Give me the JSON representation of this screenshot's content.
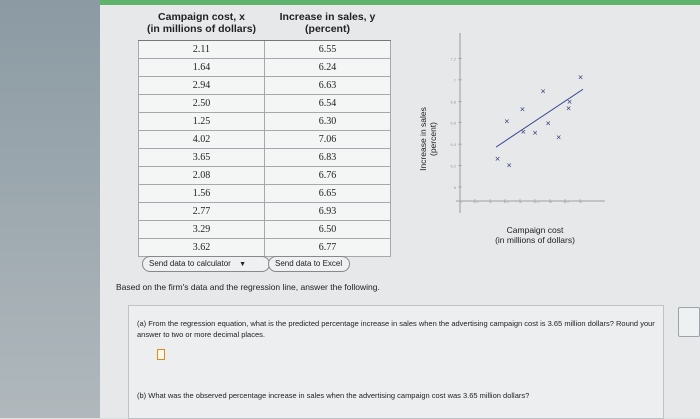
{
  "table": {
    "header_x_line1": "Campaign cost, x",
    "header_x_line2": "(in millions of dollars)",
    "header_y_line1": "Increase in sales, y",
    "header_y_line2": "(percent)",
    "rows": [
      {
        "x": "2.11",
        "y": "6.55"
      },
      {
        "x": "1.64",
        "y": "6.24"
      },
      {
        "x": "2.94",
        "y": "6.63"
      },
      {
        "x": "2.50",
        "y": "6.54"
      },
      {
        "x": "1.25",
        "y": "6.30"
      },
      {
        "x": "4.02",
        "y": "7.06"
      },
      {
        "x": "3.65",
        "y": "6.83"
      },
      {
        "x": "2.08",
        "y": "6.76"
      },
      {
        "x": "1.56",
        "y": "6.65"
      },
      {
        "x": "2.77",
        "y": "6.93"
      },
      {
        "x": "3.29",
        "y": "6.50"
      },
      {
        "x": "3.62",
        "y": "6.77"
      }
    ]
  },
  "buttons": {
    "calculator": "Send data to calculator",
    "excel": "Send data to Excel"
  },
  "prompt": "Based on the firm's data and the regression line, answer the following.",
  "chart_data": {
    "type": "scatter",
    "xlabel_line1": "Campaign cost",
    "xlabel_line2": "(in millions of dollars)",
    "ylabel_line1": "Increase in sales",
    "ylabel_line2": "(percent)",
    "xlim": [
      0,
      4.5
    ],
    "ylim": [
      6.0,
      7.4
    ],
    "y_ticks": [
      "7.2",
      "7",
      "6.8",
      "6.6",
      "6.4",
      "6.2",
      "6"
    ],
    "x_ticks": [
      "0",
      "0.5",
      "1",
      "1.5",
      "2",
      "2.5",
      "3",
      "3.5",
      "4"
    ],
    "points": [
      {
        "x": 2.11,
        "y": 6.55
      },
      {
        "x": 1.64,
        "y": 6.24
      },
      {
        "x": 2.94,
        "y": 6.63
      },
      {
        "x": 2.5,
        "y": 6.54
      },
      {
        "x": 1.25,
        "y": 6.3
      },
      {
        "x": 4.02,
        "y": 7.06
      },
      {
        "x": 3.65,
        "y": 6.83
      },
      {
        "x": 2.08,
        "y": 6.76
      },
      {
        "x": 1.56,
        "y": 6.65
      },
      {
        "x": 2.77,
        "y": 6.93
      },
      {
        "x": 3.29,
        "y": 6.5
      },
      {
        "x": 3.62,
        "y": 6.77
      }
    ],
    "regression_line": {
      "x": [
        1.2,
        4.1
      ],
      "y": [
        6.41,
        6.95
      ]
    }
  },
  "question_a": {
    "text": "(a)  From the regression equation, what is the predicted percentage increase in sales when the advertising campaign cost is 3.65 million dollars? Round your answer to two or more decimal places.",
    "answer_value": ""
  },
  "question_b": {
    "text": "(b)  What was the observed percentage increase in sales when the advertising campaign cost was 3.65 million dollars?"
  },
  "colors": {
    "accent_green": "#5fb36d",
    "answer_border": "#e08a1e",
    "line": "#2a3a8c",
    "point": "#1d2a6b"
  }
}
